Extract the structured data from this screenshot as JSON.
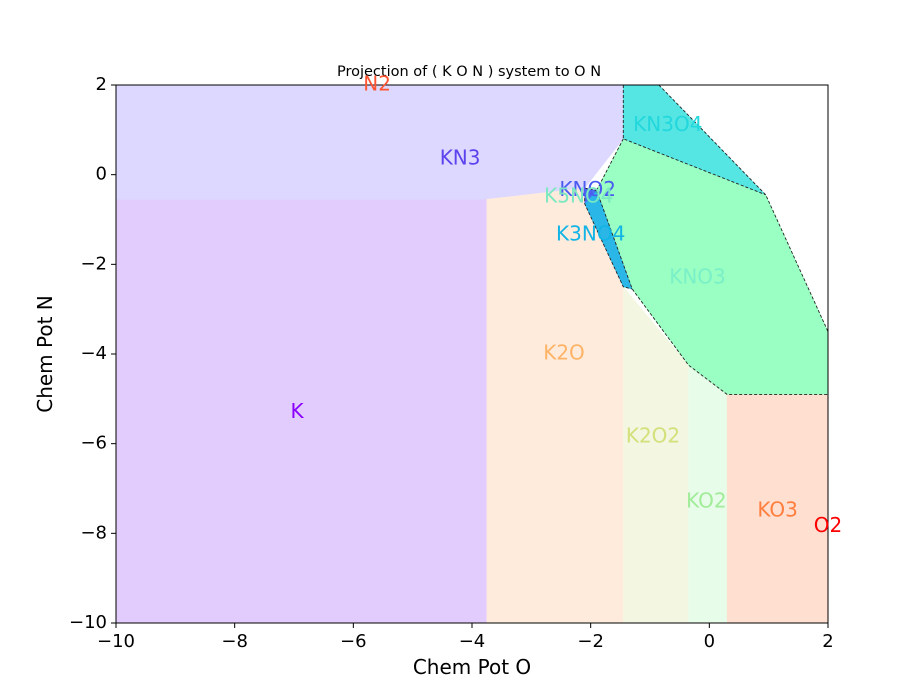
{
  "chart_data": {
    "type": "area",
    "title": "Projection of ( K O N ) system to O N",
    "xlabel": "Chem Pot O",
    "ylabel": "Chem Pot N",
    "xlim": [
      -10,
      2
    ],
    "ylim": [
      -10,
      2
    ],
    "xticks": [
      -10,
      -8,
      -6,
      -4,
      -2,
      0,
      2
    ],
    "yticks": [
      -10,
      -8,
      -6,
      -4,
      -2,
      0,
      2
    ],
    "xtick_labels": [
      "−10",
      "−8",
      "−6",
      "−4",
      "−2",
      "0",
      "2"
    ],
    "ytick_labels": [
      "−10",
      "−8",
      "−6",
      "−4",
      "−2",
      "0",
      "2"
    ],
    "grid": false,
    "regions": [
      {
        "name": "K",
        "color": "#e2ccfd",
        "label_color": "#8b00ff",
        "label_at": [
          -6.95,
          -5.3
        ],
        "polygon": [
          [
            -10,
            -10
          ],
          [
            -3.75,
            -10
          ],
          [
            -3.75,
            -0.55
          ],
          [
            -10,
            -0.55
          ]
        ]
      },
      {
        "name": "KN3",
        "color": "#dcd8ff",
        "label_color": "#5b43ee",
        "label_at": [
          -4.2,
          0.35
        ],
        "polygon": [
          [
            -10,
            -0.55
          ],
          [
            -3.75,
            -0.55
          ],
          [
            -2.1,
            -0.3
          ],
          [
            -1.45,
            0.8
          ],
          [
            -1.45,
            2
          ],
          [
            -10,
            2
          ]
        ]
      },
      {
        "name": "K2O",
        "color": "#feebdc",
        "label_color": "#ffb366",
        "label_at": [
          -2.45,
          -4.0
        ],
        "polygon": [
          [
            -3.75,
            -10
          ],
          [
            -1.45,
            -10
          ],
          [
            -1.45,
            -2.5
          ],
          [
            -2.05,
            -0.5
          ],
          [
            -2.1,
            -0.3
          ],
          [
            -3.75,
            -0.55
          ]
        ]
      },
      {
        "name": "K2O2",
        "color": "#f3f6e1",
        "label_color": "#d4e07a",
        "label_at": [
          -0.95,
          -5.85
        ],
        "polygon": [
          [
            -1.45,
            -10
          ],
          [
            -0.35,
            -10
          ],
          [
            -0.35,
            -4.25
          ],
          [
            -1.45,
            -2.5
          ]
        ]
      },
      {
        "name": "KO2",
        "color": "#e8fcea",
        "label_color": "#a0ec98",
        "label_at": [
          -0.05,
          -7.3
        ],
        "polygon": [
          [
            -0.35,
            -10
          ],
          [
            0.3,
            -10
          ],
          [
            0.3,
            -4.9
          ],
          [
            -0.35,
            -4.25
          ]
        ]
      },
      {
        "name": "KO3",
        "color": "#ffdfd0",
        "label_color": "#ff7f3f",
        "label_at": [
          1.15,
          -7.5
        ],
        "polygon": [
          [
            0.3,
            -10
          ],
          [
            2,
            -10
          ],
          [
            2,
            -4.9
          ],
          [
            0.3,
            -4.9
          ]
        ]
      },
      {
        "name": "KNO3",
        "color": "#99ffc2",
        "label_color": "#7af0c8",
        "label_at": [
          -0.2,
          -2.3
        ],
        "polygon": [
          [
            -1.45,
            0.8
          ],
          [
            0.95,
            -0.45
          ],
          [
            2,
            -3.5
          ],
          [
            2,
            -4.9
          ],
          [
            0.3,
            -4.9
          ],
          [
            -0.35,
            -4.25
          ],
          [
            -1.3,
            -2.55
          ],
          [
            -1.45,
            -2.5
          ],
          [
            -2.05,
            -0.5
          ],
          [
            -1.9,
            -0.35
          ]
        ]
      },
      {
        "name": "KN3O4",
        "color": "#55e5e3",
        "label_color": "#22d8dc",
        "label_at": [
          -0.7,
          1.1
        ],
        "polygon": [
          [
            -1.45,
            2
          ],
          [
            -0.85,
            2
          ],
          [
            0.95,
            -0.45
          ],
          [
            -1.45,
            0.8
          ]
        ]
      },
      {
        "name": "K3NO4",
        "color": "#2ab7e8",
        "label_color": "#12b4e6",
        "label_at": [
          -2.0,
          -1.35
        ],
        "polygon": [
          [
            -2.1,
            -0.65
          ],
          [
            -1.9,
            -0.35
          ],
          [
            -1.3,
            -2.55
          ],
          [
            -1.45,
            -2.5
          ]
        ]
      },
      {
        "name": "KNO2",
        "color": "#4a6cf2",
        "label_color": "#4a5cf0",
        "label_at": [
          -2.05,
          -0.35
        ],
        "polygon": [
          [
            -2.1,
            -0.3
          ],
          [
            -1.9,
            -0.35
          ],
          [
            -2.1,
            -0.65
          ]
        ]
      },
      {
        "name": "K5NO4",
        "color": "#6fd0f0",
        "label_color": "#7ae8c0",
        "label_at": [
          -2.2,
          -0.5
        ],
        "polygon": []
      },
      {
        "name": "N2",
        "color": "none",
        "label_color": "#ff5533",
        "label_at": [
          -5.6,
          2.0
        ],
        "polygon": []
      },
      {
        "name": "O2",
        "color": "none",
        "label_color": "#ff0000",
        "label_at": [
          2.0,
          -7.85
        ],
        "polygon": []
      }
    ],
    "dashed_boundaries": [
      [
        [
          -0.85,
          2
        ],
        [
          0.95,
          -0.45
        ],
        [
          2,
          -3.5
        ]
      ],
      [
        [
          -1.45,
          2
        ],
        [
          -1.45,
          0.8
        ],
        [
          0.95,
          -0.45
        ]
      ],
      [
        [
          -1.45,
          0.8
        ],
        [
          -1.9,
          -0.35
        ]
      ],
      [
        [
          -1.9,
          -0.35
        ],
        [
          -1.3,
          -2.55
        ],
        [
          -0.35,
          -4.25
        ],
        [
          0.3,
          -4.9
        ],
        [
          2,
          -4.9
        ]
      ],
      [
        [
          -2.1,
          -0.3
        ],
        [
          -1.9,
          -0.35
        ]
      ],
      [
        [
          -2.1,
          -0.3
        ],
        [
          -2.1,
          -0.65
        ],
        [
          -1.45,
          -2.5
        ],
        [
          -1.3,
          -2.55
        ]
      ]
    ]
  }
}
